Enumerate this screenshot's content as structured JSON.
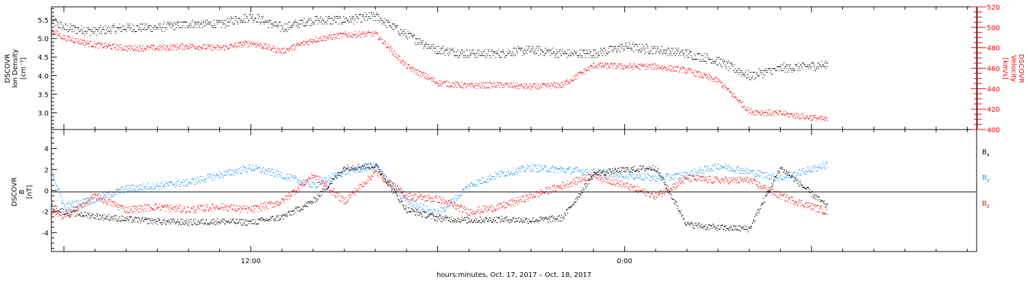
{
  "chart_data": [
    {
      "type": "scatter",
      "panel": "ion-density-velocity",
      "left_axis_label": [
        "DSCOVR",
        "Ion Density",
        "[cm⁻³]"
      ],
      "right_axis_label": [
        "DSCOVR",
        "Velocity",
        "[km/s]"
      ],
      "ylim_left": [
        2.55,
        5.85
      ],
      "ylim_right": [
        400,
        520
      ],
      "yticks_left": [
        "3.0",
        "3.5",
        "4.0",
        "4.5",
        "5.0",
        "5.5"
      ],
      "yticks_right": [
        "400",
        "420",
        "440",
        "460",
        "480",
        "500",
        "520"
      ],
      "colors": {
        "density": "#000000",
        "velocity": "#ff0000"
      },
      "series": [
        {
          "name": "Ion Density",
          "axis": "left",
          "color": "#000000",
          "x": [
            5.6,
            6,
            7,
            8,
            9,
            10,
            11,
            12,
            13,
            14,
            15,
            16,
            17,
            18,
            19,
            20,
            21,
            22,
            23,
            24,
            25,
            26,
            27,
            28,
            29,
            30.5
          ],
          "values": [
            5.5,
            5.3,
            5.2,
            5.3,
            5.3,
            5.4,
            5.4,
            5.6,
            5.3,
            5.5,
            5.5,
            5.6,
            5.1,
            4.7,
            4.6,
            4.6,
            4.7,
            4.6,
            4.6,
            4.8,
            4.7,
            4.6,
            4.4,
            4.0,
            4.2,
            4.3
          ]
        },
        {
          "name": "Velocity",
          "axis": "right",
          "color": "#ff0000",
          "x": [
            5.6,
            6,
            7,
            8,
            9,
            10,
            11,
            12,
            13,
            14,
            15,
            16,
            17,
            18,
            19,
            20,
            21,
            22,
            23,
            24,
            25,
            26,
            27,
            28,
            29,
            30.5
          ],
          "values": [
            497,
            490,
            483,
            480,
            480,
            482,
            480,
            485,
            477,
            488,
            493,
            494,
            462,
            446,
            443,
            444,
            442,
            444,
            463,
            462,
            462,
            458,
            448,
            418,
            416,
            410
          ]
        }
      ]
    },
    {
      "type": "scatter",
      "panel": "magnetic-field",
      "left_axis_label": [
        "DSCOVR",
        "B",
        "[nT]"
      ],
      "ylim": [
        -5.8,
        5.8
      ],
      "yticks": [
        "-4",
        "-2",
        "0",
        "2",
        "4"
      ],
      "legend": [
        "Bx",
        "By",
        "Bz"
      ],
      "legend_placement": "right",
      "colors": {
        "Bx": "#000000",
        "By": "#1e90ff",
        "Bz": "#ff0000"
      },
      "series": [
        {
          "name": "Bx",
          "color": "#000000",
          "x": [
            5.6,
            6,
            7,
            8,
            9,
            10,
            11,
            12,
            13,
            14,
            15,
            16,
            17,
            18,
            19,
            20,
            21,
            22,
            23,
            24,
            25,
            26,
            27,
            28,
            29,
            30.5
          ],
          "values": [
            -1.5,
            -2.0,
            -2.4,
            -2.7,
            -2.9,
            -3.0,
            -2.9,
            -3.0,
            -2.5,
            -1.0,
            2.2,
            2.4,
            -1.8,
            -2.6,
            -2.8,
            -2.7,
            -2.8,
            -2.6,
            1.6,
            2.0,
            2.2,
            -3.2,
            -3.5,
            -3.6,
            2.2,
            -1.5
          ]
        },
        {
          "name": "By",
          "color": "#1e90ff",
          "x": [
            5.6,
            6,
            7,
            8,
            9,
            10,
            11,
            12,
            13,
            14,
            15,
            16,
            17,
            18,
            19,
            20,
            21,
            22,
            23,
            24,
            25,
            26,
            27,
            28,
            29,
            30.5
          ],
          "values": [
            2.0,
            -1.5,
            -0.8,
            0.2,
            0.5,
            0.8,
            1.5,
            2.2,
            1.5,
            0.5,
            1.8,
            2.4,
            -1.0,
            -2.2,
            0.5,
            1.6,
            2.2,
            2.0,
            1.8,
            1.5,
            1.2,
            1.5,
            2.4,
            1.8,
            1.2,
            2.5
          ]
        },
        {
          "name": "Bz",
          "color": "#ff0000",
          "x": [
            5.6,
            6,
            7,
            8,
            9,
            10,
            11,
            12,
            13,
            14,
            15,
            16,
            17,
            18,
            19,
            20,
            21,
            22,
            23,
            24,
            25,
            26,
            27,
            28,
            29,
            30.5
          ],
          "values": [
            -2.0,
            -2.5,
            -0.5,
            -1.8,
            -1.5,
            -1.8,
            -1.5,
            -1.8,
            -1.0,
            1.5,
            -1.0,
            1.8,
            -0.5,
            -0.8,
            -2.0,
            -1.5,
            -0.5,
            0.5,
            1.5,
            0.5,
            -0.5,
            1.2,
            1.0,
            1.0,
            -0.5,
            -2.0
          ]
        }
      ]
    }
  ],
  "x_axis": {
    "tick_labels": [
      "12:00",
      "0:00"
    ],
    "tick_hours": [
      12,
      24
    ],
    "range_hours": [
      5.6,
      35.3
    ],
    "title": "hours:minutes, Oct. 17, 2017 – Oct. 18, 2017"
  },
  "legend_text": {
    "bx_main": "B",
    "bx_sub": "x",
    "by_main": "B",
    "by_sub": "y",
    "bz_main": "B",
    "bz_sub": "z"
  }
}
